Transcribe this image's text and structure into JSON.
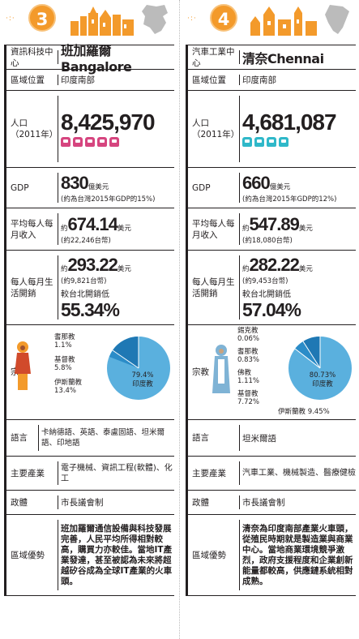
{
  "left": {
    "badge": "3",
    "labels": {
      "function": "資訊科技中心",
      "region": "區域位置",
      "pop": "人口",
      "pop_year": "（2011年）",
      "gdp": "GDP",
      "income": "平均每人每月收入",
      "cost": "每人每月生活開銷",
      "religion": "宗教",
      "language": "語言",
      "industry": "主要產業",
      "politics": "政體",
      "advantage": "區域優勢"
    },
    "city": "班加羅爾 Bangalore",
    "region": "印度南部",
    "population": "8,425,970",
    "gdp_value": "830",
    "gdp_unit": "億美元",
    "gdp_note": "(約為台灣2015年GDP的15%)",
    "income_prefix": "約",
    "income_value": "674.14",
    "income_unit": "美元",
    "income_note": "(約22,246台幣)",
    "cost_prefix": "約",
    "cost_value": "293.22",
    "cost_unit": "美元",
    "cost_note": "(約9,821台幣)",
    "cost_cmp": "較台北開銷低",
    "cost_pct": "55.34%",
    "religion_items": [
      {
        "name": "耆那教",
        "pct": "1.1%"
      },
      {
        "name": "基督教",
        "pct": "5.8%"
      },
      {
        "name": "伊斯蘭教",
        "pct": "13.4%"
      }
    ],
    "religion_main_pct": "79.4%",
    "religion_main_name": "印度教",
    "language": "卡納德語、英語、泰盧固語、坦米爾語、印地語",
    "industry": "電子機械、資訊工程(軟體)、化工",
    "politics": "市長議會制",
    "advantage": "班加羅爾通信設備與科技發展完善，人民平均所得相對較高，購買力亦較佳。當地IT產業發達，甚至被認為未來將超越矽谷成為全球IT產業的火車頭。"
  },
  "right": {
    "badge": "4",
    "labels": {
      "function": "汽車工業中心",
      "region": "區域位置",
      "pop": "人口",
      "pop_year": "（2011年）",
      "gdp": "GDP",
      "income": "平均每人每月收入",
      "cost": "每人每月生活開銷",
      "religion": "宗教",
      "language": "語言",
      "industry": "主要產業",
      "politics": "政體",
      "advantage": "區域優勢"
    },
    "city": "清奈Chennai",
    "region": "印度南部",
    "population": "4,681,087",
    "gdp_value": "660",
    "gdp_unit": "億美元",
    "gdp_note": "(約為台灣2015年GDP的12%)",
    "income_prefix": "約",
    "income_value": "547.89",
    "income_unit": "美元",
    "income_note": "(約18,080台幣)",
    "cost_prefix": "約",
    "cost_value": "282.22",
    "cost_unit": "美元",
    "cost_note": "(約9,453台幣)",
    "cost_cmp": "較台北開銷低",
    "cost_pct": "57.04%",
    "religion_items": [
      {
        "name": "錫克教",
        "pct": "0.06%"
      },
      {
        "name": "耆那教",
        "pct": "0.83%"
      },
      {
        "name": "佛教",
        "pct": "1.11%"
      },
      {
        "name": "基督教",
        "pct": "7.72%"
      }
    ],
    "religion_islam": "伊斯蘭教 9.45%",
    "religion_main_pct": "80.73%",
    "religion_main_name": "印度教",
    "language": "坦米爾語",
    "industry": "汽車工業、機械製造、醫療健檢",
    "politics": "市長議會制",
    "advantage": "清奈為印度南部產業火車頭，從殖民時期就是製造業與商業中心。當地商業環境競爭激烈，政府支援程度和企業創新能量都較高，供應鏈系統相對成熟。"
  },
  "colors": {
    "accent": "#f39a2b",
    "pie_main": "#5ab0de",
    "pie_dark": "#1f78b4",
    "people_left": "#d6457f",
    "people_right": "#2fb8c9"
  }
}
